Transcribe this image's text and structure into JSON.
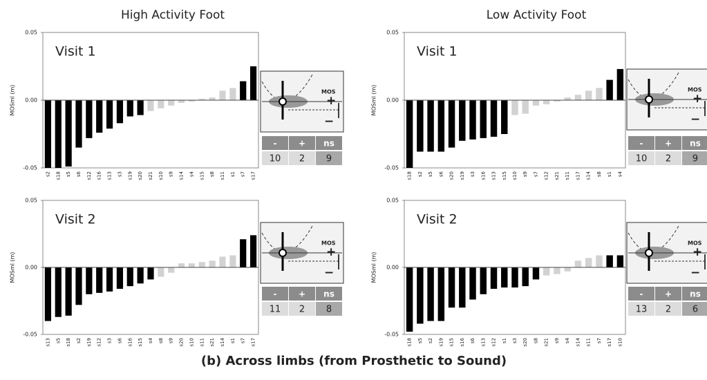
{
  "figure": {
    "column_titles": [
      "High Activity Foot",
      "Low Activity Foot"
    ],
    "caption": "(b) Across limbs (from Prosthetic to Sound)"
  },
  "chart_data": [
    {
      "type": "bar",
      "title": "Visit 1",
      "ylabel": "MOSml (m)",
      "categories": [
        "s2",
        "s18",
        "s5",
        "s6",
        "s12",
        "s16",
        "s13",
        "s3",
        "s19",
        "s20",
        "s21",
        "s10",
        "s9",
        "s14",
        "s4",
        "s15",
        "s8",
        "s11",
        "s1",
        "s7",
        "s17"
      ],
      "values": [
        -0.05,
        -0.05,
        -0.049,
        -0.035,
        -0.028,
        -0.024,
        -0.021,
        -0.017,
        -0.012,
        -0.011,
        -0.008,
        -0.006,
        -0.004,
        -0.002,
        -0.001,
        0.001,
        0.002,
        0.007,
        0.009,
        0.014,
        0.025
      ],
      "colors": [
        "#000",
        "#000",
        "#000",
        "#000",
        "#000",
        "#000",
        "#000",
        "#000",
        "#000",
        "#000",
        "#d2d2d2",
        "#d2d2d2",
        "#d2d2d2",
        "#d2d2d2",
        "#d2d2d2",
        "#d2d2d2",
        "#d2d2d2",
        "#d2d2d2",
        "#d2d2d2",
        "#000",
        "#000"
      ],
      "ylim": [
        -0.05,
        0.05
      ],
      "yticks": [
        {
          "value": -0.05,
          "label": "-0.05"
        },
        {
          "value": 0,
          "label": "0.00"
        },
        {
          "value": 0.05,
          "label": "0.05"
        }
      ],
      "inset": {
        "label": "MOS",
        "plus": "+",
        "minus": "−"
      },
      "table": {
        "header": [
          "-",
          "+",
          "ns"
        ],
        "values": [
          10,
          2,
          9
        ]
      }
    },
    {
      "type": "bar",
      "title": "Visit 1",
      "ylabel": "MOSml (m)",
      "categories": [
        "s18",
        "s2",
        "s5",
        "s6",
        "s20",
        "s19",
        "s3",
        "s16",
        "s13",
        "s15",
        "s10",
        "s9",
        "s7",
        "s12",
        "s21",
        "s11",
        "s17",
        "s14",
        "s8",
        "s1",
        "s4"
      ],
      "values": [
        -0.05,
        -0.038,
        -0.038,
        -0.038,
        -0.035,
        -0.03,
        -0.029,
        -0.028,
        -0.027,
        -0.025,
        -0.011,
        -0.01,
        -0.004,
        -0.003,
        -0.001,
        0.002,
        0.004,
        0.007,
        0.009,
        0.015,
        0.023
      ],
      "colors": [
        "#000",
        "#000",
        "#000",
        "#000",
        "#000",
        "#000",
        "#000",
        "#000",
        "#000",
        "#000",
        "#d2d2d2",
        "#d2d2d2",
        "#d2d2d2",
        "#d2d2d2",
        "#d2d2d2",
        "#d2d2d2",
        "#d2d2d2",
        "#d2d2d2",
        "#d2d2d2",
        "#000",
        "#000"
      ],
      "ylim": [
        -0.05,
        0.05
      ],
      "yticks": [
        {
          "value": -0.05,
          "label": "-0.05"
        },
        {
          "value": 0,
          "label": "0.00"
        },
        {
          "value": 0.05,
          "label": "0.05"
        }
      ],
      "inset": {
        "label": "MOS",
        "plus": "+",
        "minus": "−"
      },
      "table": {
        "header": [
          "-",
          "+",
          "ns"
        ],
        "values": [
          10,
          2,
          9
        ]
      }
    },
    {
      "type": "bar",
      "title": "Visit 2",
      "ylabel": "MOSml (m)",
      "categories": [
        "s13",
        "s5",
        "s18",
        "s2",
        "s19",
        "s12",
        "s3",
        "s6",
        "s16",
        "s15",
        "s4",
        "s8",
        "s9",
        "s20",
        "s10",
        "s11",
        "s21",
        "s14",
        "s1",
        "s7",
        "s17"
      ],
      "values": [
        -0.04,
        -0.037,
        -0.036,
        -0.028,
        -0.02,
        -0.019,
        -0.018,
        -0.016,
        -0.014,
        -0.012,
        -0.009,
        -0.007,
        -0.004,
        0.003,
        0.003,
        0.004,
        0.005,
        0.008,
        0.009,
        0.021,
        0.024
      ],
      "colors": [
        "#000",
        "#000",
        "#000",
        "#000",
        "#000",
        "#000",
        "#000",
        "#000",
        "#000",
        "#000",
        "#000",
        "#d2d2d2",
        "#d2d2d2",
        "#d2d2d2",
        "#d2d2d2",
        "#d2d2d2",
        "#d2d2d2",
        "#d2d2d2",
        "#d2d2d2",
        "#000",
        "#000"
      ],
      "ylim": [
        -0.05,
        0.05
      ],
      "yticks": [
        {
          "value": -0.05,
          "label": "-0.05"
        },
        {
          "value": 0,
          "label": "0.00"
        },
        {
          "value": 0.05,
          "label": "0.05"
        }
      ],
      "inset": {
        "label": "MOS",
        "plus": "+",
        "minus": "−"
      },
      "table": {
        "header": [
          "-",
          "+",
          "ns"
        ],
        "values": [
          11,
          2,
          8
        ]
      }
    },
    {
      "type": "bar",
      "title": "Visit 2",
      "ylabel": "MOSml (m)",
      "categories": [
        "s18",
        "s5",
        "s2",
        "s19",
        "s15",
        "s16",
        "s6",
        "s13",
        "s12",
        "s1",
        "s3",
        "s20",
        "s8",
        "s21",
        "s9",
        "s4",
        "s14",
        "s11",
        "s7",
        "s17",
        "s10"
      ],
      "values": [
        -0.048,
        -0.042,
        -0.04,
        -0.04,
        -0.03,
        -0.03,
        -0.024,
        -0.02,
        -0.016,
        -0.015,
        -0.015,
        -0.014,
        -0.009,
        -0.006,
        -0.005,
        -0.003,
        0.005,
        0.007,
        0.009,
        0.009,
        0.009
      ],
      "colors": [
        "#000",
        "#000",
        "#000",
        "#000",
        "#000",
        "#000",
        "#000",
        "#000",
        "#000",
        "#000",
        "#000",
        "#000",
        "#000",
        "#d2d2d2",
        "#d2d2d2",
        "#d2d2d2",
        "#d2d2d2",
        "#d2d2d2",
        "#d2d2d2",
        "#000",
        "#000"
      ],
      "ylim": [
        -0.05,
        0.05
      ],
      "yticks": [
        {
          "value": -0.05,
          "label": "-0.05"
        },
        {
          "value": 0,
          "label": "0.00"
        },
        {
          "value": 0.05,
          "label": "0.05"
        }
      ],
      "inset": {
        "label": "MOS",
        "plus": "+",
        "minus": "−"
      },
      "table": {
        "header": [
          "-",
          "+",
          "ns"
        ],
        "values": [
          13,
          2,
          6
        ]
      }
    }
  ]
}
